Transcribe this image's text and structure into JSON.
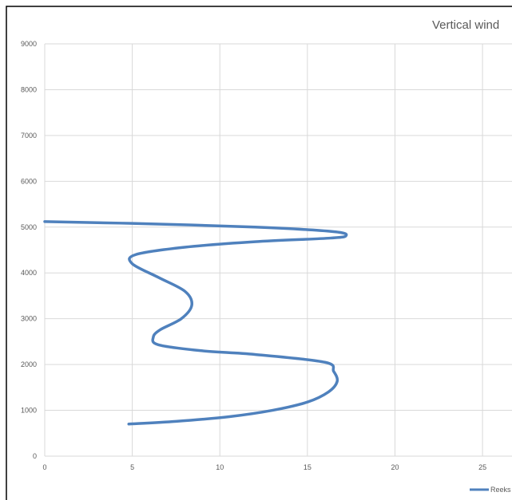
{
  "chart_data": {
    "type": "line",
    "title": "Vertical wind",
    "xlabel": "",
    "ylabel": "",
    "xlim": [
      0,
      26
    ],
    "ylim": [
      0,
      9000
    ],
    "x_ticks": [
      0,
      5,
      10,
      15,
      20,
      25
    ],
    "y_ticks": [
      0,
      1000,
      2000,
      3000,
      4000,
      5000,
      6000,
      7000,
      8000,
      9000
    ],
    "grid": true,
    "legend_position": "bottom-right",
    "series": [
      {
        "name": "Reeks",
        "color": "#4f81bd",
        "x": [
          4.8,
          7.5,
          10.5,
          13,
          15,
          16.2,
          16.7,
          16.5,
          16,
          12,
          9,
          6.5,
          6.2,
          6.6,
          7.8,
          8.4,
          8,
          6.5,
          5,
          5.2,
          8,
          12,
          16.3,
          17.2,
          16.5,
          12,
          5,
          0
        ],
        "y": [
          700,
          760,
          860,
          1000,
          1180,
          1400,
          1630,
          1850,
          2050,
          2220,
          2300,
          2430,
          2600,
          2760,
          3000,
          3300,
          3600,
          3900,
          4200,
          4400,
          4560,
          4680,
          4760,
          4810,
          4900,
          5000,
          5080,
          5120
        ]
      }
    ]
  }
}
